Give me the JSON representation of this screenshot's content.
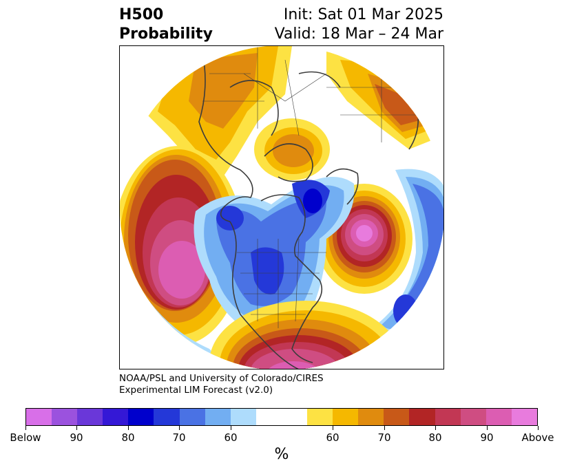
{
  "title": {
    "left_line1": "H500",
    "left_line2": "Probability",
    "right_line1": "Init: Sat 01 Mar 2025",
    "right_line2": "Valid: 18 Mar – 24 Mar"
  },
  "credit": {
    "line1": "NOAA/PSL and University of Colorado/CIRES",
    "line2": "Experimental LIM Forecast (v2.0)"
  },
  "colorbar": {
    "below_colors": [
      "#d86fe8",
      "#9b52de",
      "#6a37d9",
      "#3418d6",
      "#0000cc",
      "#2438d8",
      "#4a72e4",
      "#72aef2",
      "#aedcfc"
    ],
    "neutral_color": "#ffffff",
    "above_colors": [
      "#fde243",
      "#f5b800",
      "#e08b0e",
      "#c85918",
      "#b22525",
      "#c23754",
      "#cf4d82",
      "#dc5db2",
      "#e87bdd"
    ],
    "tick_labels": [
      "Below",
      "90",
      "80",
      "70",
      "60",
      "60",
      "70",
      "80",
      "90",
      "Above"
    ],
    "unit_label": "%"
  },
  "map": {
    "projection": "north-polar-stereographic",
    "field": "500 hPa height tercile probability",
    "icons": [
      "coastlines",
      "country-borders",
      "us-state-borders"
    ]
  }
}
